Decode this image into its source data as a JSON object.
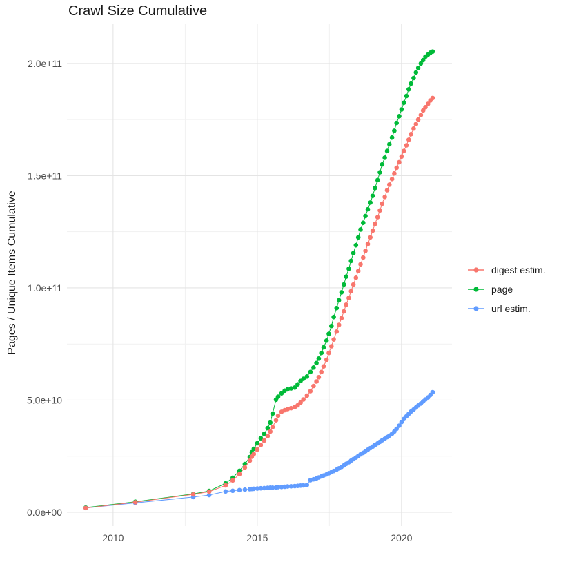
{
  "chart_data": {
    "type": "line",
    "title": "Crawl Size Cumulative",
    "xlabel": "",
    "ylabel": "Pages / Unique Items Cumulative",
    "grid": true,
    "legend_position": "right",
    "xlim": [
      2008.4,
      2021.75
    ],
    "ylim_e9": [
      -6.15,
      217.5
    ],
    "x_major_ticks": [
      {
        "value": 2010,
        "label": "2010"
      },
      {
        "value": 2015,
        "label": "2015"
      },
      {
        "value": 2020,
        "label": "2020"
      }
    ],
    "x_minor_ticks": [
      2012.5,
      2017.5
    ],
    "y_major_ticks": [
      {
        "value_e9": 0,
        "label": "0.0e+00"
      },
      {
        "value_e9": 50,
        "label": "5.0e+10"
      },
      {
        "value_e9": 100,
        "label": "1.0e+11"
      },
      {
        "value_e9": 150,
        "label": "1.5e+11"
      },
      {
        "value_e9": 200,
        "label": "2.0e+11"
      }
    ],
    "y_minor_ticks_e9": [
      25,
      75,
      125,
      175
    ],
    "x": [
      2009.05,
      2010.77,
      2012.78,
      2013.33,
      2013.9,
      2014.15,
      2014.38,
      2014.57,
      2014.74,
      2014.81,
      2014.88,
      2015.0,
      2015.12,
      2015.24,
      2015.36,
      2015.45,
      2015.53,
      2015.65,
      2015.72,
      2015.84,
      2015.95,
      2016.05,
      2016.17,
      2016.3,
      2016.4,
      2016.5,
      2016.6,
      2016.72,
      2016.84,
      2016.95,
      2017.05,
      2017.13,
      2017.22,
      2017.3,
      2017.4,
      2017.48,
      2017.57,
      2017.65,
      2017.75,
      2017.83,
      2017.92,
      2018.0,
      2018.08,
      2018.17,
      2018.25,
      2018.33,
      2018.42,
      2018.5,
      2018.58,
      2018.67,
      2018.75,
      2018.83,
      2018.92,
      2019.0,
      2019.08,
      2019.17,
      2019.25,
      2019.33,
      2019.42,
      2019.5,
      2019.58,
      2019.67,
      2019.75,
      2019.83,
      2019.92,
      2020.0,
      2020.08,
      2020.17,
      2020.25,
      2020.33,
      2020.42,
      2020.5,
      2020.58,
      2020.67,
      2020.75,
      2020.83,
      2020.92,
      2021.0,
      2021.08
    ],
    "series": [
      {
        "name": "digest estim.",
        "color": "#F8766D",
        "values_e9": [
          1.9,
          4.5,
          8.0,
          9.2,
          12.0,
          14.2,
          17.0,
          20.0,
          23.0,
          24.8,
          26.0,
          28.0,
          30.0,
          32.0,
          34.0,
          36.0,
          38.0,
          41.0,
          43.0,
          44.8,
          45.5,
          46.0,
          46.4,
          46.9,
          47.7,
          48.9,
          50.3,
          52.0,
          54.0,
          56.3,
          58.3,
          60.2,
          62.5,
          65.0,
          68.0,
          71.0,
          74.0,
          77.0,
          80.5,
          83.5,
          86.5,
          89.5,
          92.5,
          95.5,
          98.5,
          101.5,
          104.5,
          107.5,
          110.5,
          113.5,
          116.5,
          119.5,
          122.5,
          125.5,
          128.5,
          131.5,
          134.5,
          137.5,
          140.5,
          143.5,
          146.0,
          148.5,
          151.0,
          153.5,
          156.0,
          158.5,
          161.0,
          163.5,
          166.0,
          168.5,
          171.0,
          173.0,
          175.0,
          177.0,
          179.0,
          180.5,
          182.0,
          183.5,
          184.6
        ]
      },
      {
        "name": "page",
        "color": "#00BA38",
        "values_e9": [
          2.1,
          4.7,
          8.2,
          9.5,
          12.9,
          15.4,
          18.5,
          21.5,
          24.6,
          26.8,
          28.3,
          30.8,
          33.0,
          35.0,
          37.5,
          40.0,
          44.0,
          50.2,
          51.5,
          53.0,
          54.2,
          54.8,
          55.2,
          55.6,
          57.0,
          58.5,
          59.5,
          60.5,
          62.5,
          64.5,
          66.5,
          68.5,
          71.0,
          73.5,
          76.5,
          79.5,
          83.0,
          87.0,
          91.0,
          94.5,
          98.0,
          101.5,
          105.0,
          108.5,
          112.0,
          115.5,
          119.0,
          122.5,
          126.0,
          129.0,
          132.0,
          135.0,
          138.0,
          141.0,
          144.5,
          148.0,
          151.5,
          155.0,
          158.0,
          161.0,
          164.0,
          167.0,
          170.0,
          173.5,
          176.5,
          179.5,
          182.5,
          185.5,
          188.5,
          191.0,
          193.5,
          196.0,
          198.0,
          200.0,
          201.5,
          203.0,
          204.0,
          204.8,
          205.3
        ]
      },
      {
        "name": "url estim.",
        "color": "#619CFF",
        "values_e9": [
          1.9,
          4.2,
          6.8,
          7.7,
          9.3,
          9.6,
          9.9,
          10.1,
          10.3,
          10.4,
          10.5,
          10.6,
          10.7,
          10.8,
          10.9,
          11.0,
          11.0,
          11.1,
          11.2,
          11.3,
          11.4,
          11.5,
          11.6,
          11.7,
          11.8,
          11.9,
          12.0,
          12.2,
          14.3,
          14.7,
          15.1,
          15.5,
          16.0,
          16.4,
          16.9,
          17.4,
          17.9,
          18.4,
          19.0,
          19.6,
          20.2,
          20.9,
          21.6,
          22.3,
          23.0,
          23.7,
          24.4,
          25.1,
          25.8,
          26.5,
          27.2,
          27.9,
          28.6,
          29.3,
          30.0,
          30.7,
          31.4,
          32.1,
          32.8,
          33.5,
          34.2,
          35.0,
          36.0,
          37.2,
          38.6,
          40.2,
          41.6,
          42.8,
          43.9,
          44.9,
          45.8,
          46.7,
          47.6,
          48.5,
          49.4,
          50.3,
          51.2,
          52.3,
          53.5
        ]
      }
    ]
  },
  "legend": {
    "entries": [
      "digest estim.",
      "page",
      "url estim."
    ]
  },
  "colors": {
    "background": "#ffffff",
    "grid_major": "#e4e4e4",
    "grid_minor": "#f1f1f1",
    "axis_text": "#4d4d4d",
    "title_text": "#1a1a1a"
  }
}
